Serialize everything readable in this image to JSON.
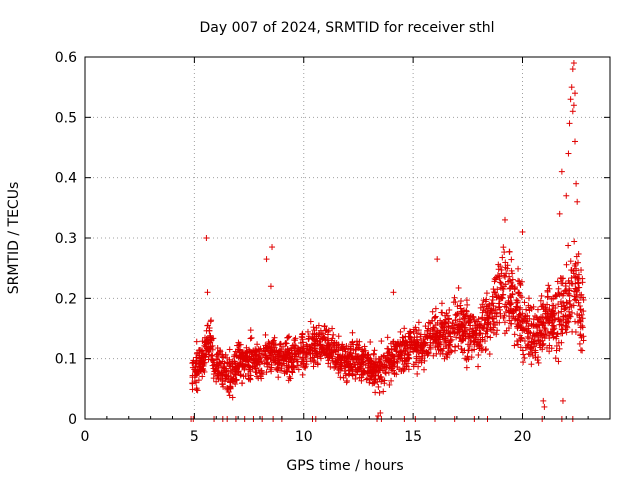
{
  "chart_data": {
    "type": "scatter",
    "title": "Day 007 of 2024, SRMTID for receiver sthl",
    "xlabel": "GPS time / hours",
    "ylabel": "SRMTID / TECUs",
    "xlim": [
      0,
      24
    ],
    "ylim": [
      0,
      0.6
    ],
    "x_ticks": [
      0,
      5,
      10,
      15,
      20
    ],
    "y_ticks": [
      0,
      0.1,
      0.2,
      0.3,
      0.4,
      0.5,
      0.6
    ],
    "x_tick_labels": [
      "0",
      "5",
      "10",
      "15",
      "20"
    ],
    "y_tick_labels": [
      "0",
      "0.1",
      "0.2",
      "0.3",
      "0.4",
      "0.5",
      "0.6"
    ],
    "grid": true,
    "marker": "+",
    "color": "#e00000",
    "series": [
      {
        "name": "SRMTID",
        "trend": [
          [
            4.9,
            0.07
          ],
          [
            5.3,
            0.1
          ],
          [
            5.7,
            0.13
          ],
          [
            6.0,
            0.09
          ],
          [
            6.5,
            0.07
          ],
          [
            7.0,
            0.09
          ],
          [
            7.5,
            0.1
          ],
          [
            8.0,
            0.1
          ],
          [
            8.5,
            0.11
          ],
          [
            9.0,
            0.1
          ],
          [
            9.5,
            0.1
          ],
          [
            10.0,
            0.11
          ],
          [
            10.5,
            0.12
          ],
          [
            11.0,
            0.12
          ],
          [
            11.5,
            0.11
          ],
          [
            12.0,
            0.1
          ],
          [
            12.5,
            0.1
          ],
          [
            13.0,
            0.09
          ],
          [
            13.5,
            0.08
          ],
          [
            14.0,
            0.1
          ],
          [
            14.5,
            0.11
          ],
          [
            15.0,
            0.12
          ],
          [
            15.5,
            0.12
          ],
          [
            16.0,
            0.15
          ],
          [
            16.5,
            0.13
          ],
          [
            17.0,
            0.16
          ],
          [
            17.5,
            0.15
          ],
          [
            18.0,
            0.14
          ],
          [
            18.5,
            0.17
          ],
          [
            19.0,
            0.22
          ],
          [
            19.5,
            0.2
          ],
          [
            20.0,
            0.15
          ],
          [
            20.5,
            0.14
          ],
          [
            21.0,
            0.16
          ],
          [
            21.5,
            0.16
          ],
          [
            22.0,
            0.2
          ],
          [
            22.5,
            0.22
          ],
          [
            22.8,
            0.16
          ]
        ],
        "outliers": [
          [
            5.55,
            0.3
          ],
          [
            5.6,
            0.21
          ],
          [
            8.3,
            0.265
          ],
          [
            8.55,
            0.285
          ],
          [
            8.5,
            0.22
          ],
          [
            14.1,
            0.21
          ],
          [
            16.1,
            0.265
          ],
          [
            19.2,
            0.33
          ],
          [
            20.0,
            0.31
          ],
          [
            21.7,
            0.34
          ],
          [
            21.8,
            0.41
          ],
          [
            22.0,
            0.37
          ],
          [
            22.1,
            0.44
          ],
          [
            22.15,
            0.49
          ],
          [
            22.2,
            0.53
          ],
          [
            22.25,
            0.55
          ],
          [
            22.3,
            0.58
          ],
          [
            22.35,
            0.59
          ],
          [
            22.3,
            0.51
          ],
          [
            22.4,
            0.46
          ],
          [
            22.45,
            0.39
          ],
          [
            22.5,
            0.36
          ],
          [
            22.4,
            0.54
          ],
          [
            22.35,
            0.52
          ],
          [
            21.85,
            0.03
          ],
          [
            21.0,
            0.02
          ],
          [
            20.95,
            0.03
          ],
          [
            13.4,
            0.005
          ],
          [
            13.5,
            0.01
          ]
        ],
        "zero_x": [
          4.85,
          4.95,
          5.9,
          6.3,
          6.5,
          6.9,
          7.3,
          7.7,
          8.1,
          8.6,
          9.0,
          10.4,
          10.55,
          13.35,
          13.55,
          14.6,
          15.1,
          16.0,
          16.9,
          17.8,
          18.4,
          20.9,
          21.8,
          22.3
        ]
      }
    ]
  }
}
